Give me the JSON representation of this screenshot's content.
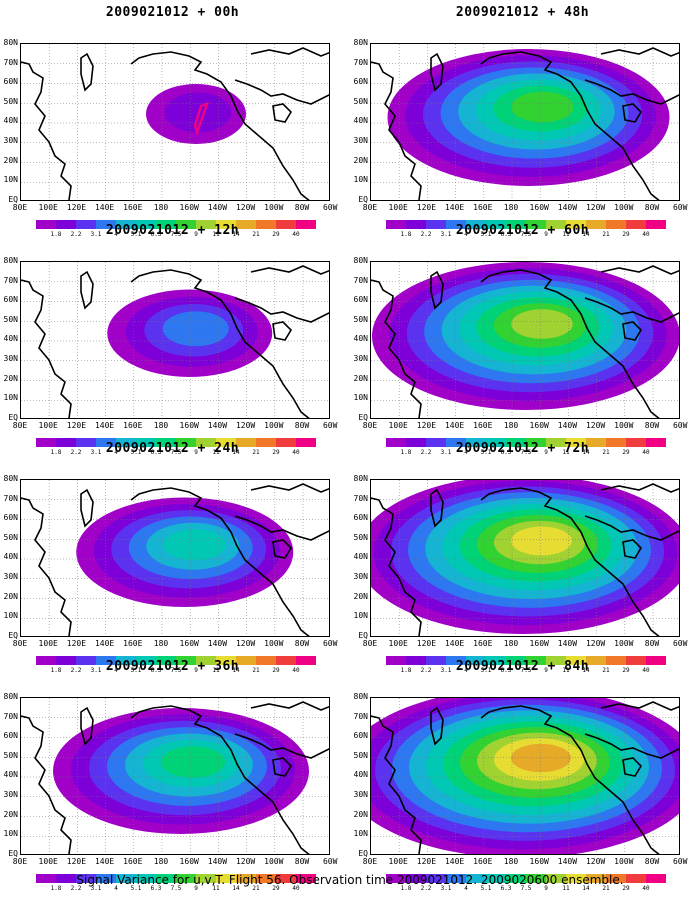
{
  "panels": [
    {
      "title": "2009021012 + 00h",
      "intensity": 0.0
    },
    {
      "title": "2009021012 + 12h",
      "intensity": 0.25
    },
    {
      "title": "2009021012 + 24h",
      "intensity": 0.45
    },
    {
      "title": "2009021012 + 36h",
      "intensity": 0.6
    },
    {
      "title": "2009021012 + 48h",
      "intensity": 0.7
    },
    {
      "title": "2009021012 + 60h",
      "intensity": 0.8
    },
    {
      "title": "2009021012 + 72h",
      "intensity": 0.9
    },
    {
      "title": "2009021012 + 84h",
      "intensity": 1.0
    }
  ],
  "lat_labels": [
    "80N",
    "70N",
    "60N",
    "50N",
    "40N",
    "30N",
    "20N",
    "10N",
    "EQ"
  ],
  "lon_labels": [
    "80E",
    "100E",
    "120E",
    "140E",
    "160E",
    "180",
    "160W",
    "140W",
    "120W",
    "100W",
    "80W",
    "60W"
  ],
  "colorbar": {
    "labels": [
      "1.8",
      "2.2",
      "3.1",
      "4",
      "5.1",
      "6.3",
      "7.5",
      "9",
      "11",
      "14",
      "21",
      "29",
      "40"
    ],
    "colors": [
      "#a000c8",
      "#7d00d8",
      "#5a32f0",
      "#2d78f0",
      "#14b4d2",
      "#00c8b4",
      "#00d278",
      "#32d232",
      "#a0d232",
      "#e6dc32",
      "#e6aa28",
      "#f07828",
      "#f03c3c",
      "#f00082"
    ]
  },
  "footer": "Signal Variance for u,v,T. Flight 56. Observation time 2009021012. 2009020600 ensemble."
}
